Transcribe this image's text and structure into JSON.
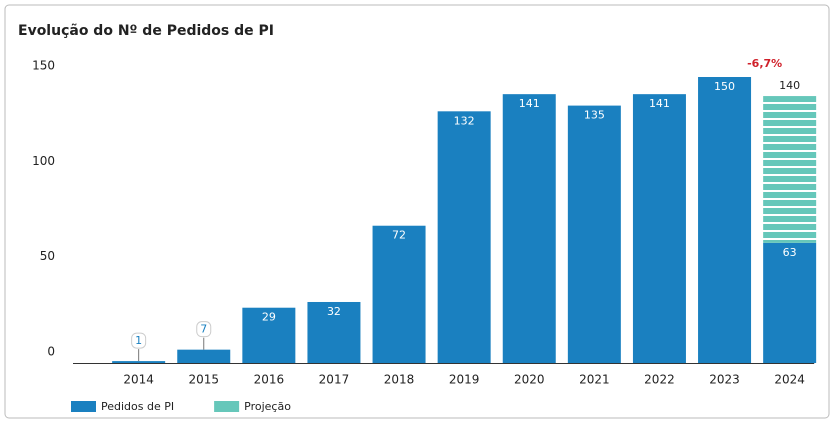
{
  "chart_data": {
    "type": "bar",
    "title": "Evolução do Nº de Pedidos de PI",
    "categories": [
      null,
      "2014",
      "2015",
      "2016",
      "2017",
      "2018",
      "2019",
      "2020",
      "2021",
      "2022",
      "2023",
      "2024"
    ],
    "series": [
      {
        "name": "Pedidos de PI",
        "color": "#1a80c0",
        "values": [
          0,
          1,
          7,
          29,
          32,
          72,
          132,
          141,
          135,
          141,
          150,
          63
        ]
      },
      {
        "name": "Projeção",
        "color": "#66c7ba",
        "values": [
          null,
          null,
          null,
          null,
          null,
          null,
          null,
          null,
          null,
          null,
          null,
          77
        ]
      }
    ],
    "totals": [
      null,
      null,
      null,
      null,
      null,
      null,
      null,
      null,
      null,
      null,
      null,
      140
    ],
    "annotation": "-6,7%",
    "ylim": [
      0,
      150
    ],
    "yticks": [
      0,
      50,
      100,
      150
    ],
    "grid": false,
    "stacked": true,
    "legend": "bottom-left"
  }
}
